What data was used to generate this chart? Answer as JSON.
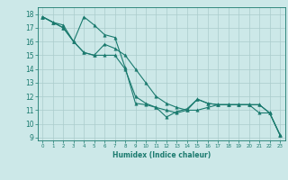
{
  "xlabel": "Humidex (Indice chaleur)",
  "xlim": [
    -0.5,
    23.5
  ],
  "ylim": [
    8.8,
    18.5
  ],
  "yticks": [
    9,
    10,
    11,
    12,
    13,
    14,
    15,
    16,
    17,
    18
  ],
  "xticks": [
    0,
    1,
    2,
    3,
    4,
    5,
    6,
    7,
    8,
    9,
    10,
    11,
    12,
    13,
    14,
    15,
    16,
    17,
    18,
    19,
    20,
    21,
    22,
    23
  ],
  "bg_color": "#cce8e8",
  "grid_color": "#aacccc",
  "line_color": "#1a7a6e",
  "series": [
    [
      17.8,
      17.4,
      17.2,
      16.0,
      17.8,
      17.2,
      16.5,
      16.3,
      14.1,
      11.5,
      11.4,
      11.2,
      10.5,
      10.9,
      11.1,
      11.8,
      11.5,
      11.4,
      11.4,
      11.4,
      11.4,
      11.4,
      10.8,
      9.2
    ],
    [
      17.8,
      17.4,
      17.0,
      16.0,
      15.2,
      15.0,
      15.0,
      15.0,
      14.0,
      12.0,
      11.5,
      11.2,
      11.0,
      10.8,
      11.0,
      11.8,
      11.5,
      11.4,
      11.4,
      11.4,
      11.4,
      10.8,
      10.8,
      9.2
    ],
    [
      17.8,
      17.4,
      17.0,
      16.0,
      15.2,
      15.0,
      15.8,
      15.5,
      15.0,
      14.0,
      13.0,
      12.0,
      11.5,
      11.2,
      11.0,
      11.0,
      11.2,
      11.4,
      11.4,
      11.4,
      11.4,
      11.4,
      10.8,
      9.2
    ]
  ]
}
